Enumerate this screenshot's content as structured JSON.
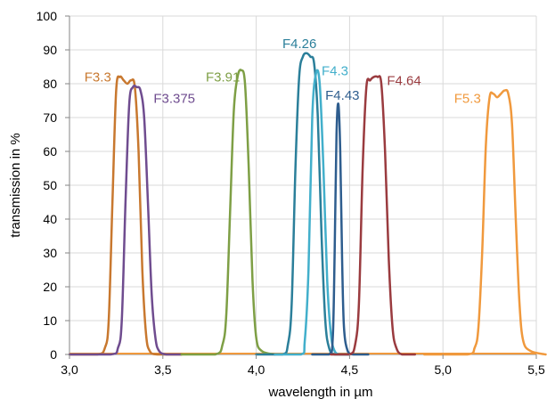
{
  "chart_data": {
    "type": "line",
    "title": "",
    "xlabel": "wavelength in µm",
    "ylabel": "transmission in %",
    "xlim": [
      3.0,
      5.5
    ],
    "ylim": [
      0,
      100
    ],
    "xticks": [
      3.0,
      3.5,
      4.0,
      4.5,
      5.0,
      5.5
    ],
    "xtick_labels": [
      "3,0",
      "3,5",
      "4,0",
      "4,5",
      "5,0",
      "5,5"
    ],
    "yticks": [
      0,
      10,
      20,
      30,
      40,
      50,
      60,
      70,
      80,
      90,
      100
    ],
    "ytick_labels": [
      "0",
      "10",
      "20",
      "30",
      "40",
      "50",
      "60",
      "70",
      "80",
      "90",
      "100"
    ],
    "grid": true,
    "legend": "none",
    "series": [
      {
        "name": "F3.3",
        "color": "#C8782F",
        "x": [
          3.0,
          3.15,
          3.19,
          3.21,
          3.23,
          3.25,
          3.27,
          3.29,
          3.31,
          3.33,
          3.35,
          3.37,
          3.39,
          3.41,
          3.43,
          3.47,
          3.6
        ],
        "y": [
          0,
          0,
          2,
          10,
          45,
          78,
          82,
          81,
          80,
          81,
          79,
          60,
          25,
          6,
          1,
          0,
          0
        ]
      },
      {
        "name": "F3.375",
        "color": "#6F4C8F",
        "x": [
          3.0,
          3.22,
          3.26,
          3.28,
          3.3,
          3.32,
          3.34,
          3.36,
          3.38,
          3.4,
          3.42,
          3.44,
          3.46,
          3.48,
          3.52,
          3.6
        ],
        "y": [
          0,
          0,
          2,
          10,
          45,
          74,
          79,
          79,
          78,
          70,
          45,
          18,
          5,
          1,
          0,
          0
        ]
      },
      {
        "name": "F3.91",
        "color": "#7E9F45",
        "x": [
          3.6,
          3.78,
          3.82,
          3.84,
          3.86,
          3.88,
          3.9,
          3.92,
          3.94,
          3.96,
          3.98,
          4.0,
          4.03,
          4.1
        ],
        "y": [
          0,
          0,
          3,
          12,
          42,
          72,
          82,
          84,
          80,
          55,
          22,
          5,
          1,
          0
        ]
      },
      {
        "name": "F4.26",
        "color": "#2B7F9A",
        "x": [
          4.0,
          4.14,
          4.17,
          4.19,
          4.21,
          4.23,
          4.25,
          4.27,
          4.29,
          4.31,
          4.33,
          4.35,
          4.37,
          4.39,
          4.42,
          4.5
        ],
        "y": [
          0,
          0,
          3,
          15,
          55,
          82,
          88,
          89,
          88,
          86,
          70,
          35,
          10,
          2,
          0,
          0
        ]
      },
      {
        "name": "F4.3",
        "color": "#42AFCB",
        "x": [
          4.1,
          4.24,
          4.26,
          4.28,
          4.3,
          4.32,
          4.34,
          4.36,
          4.38,
          4.4,
          4.42,
          4.45,
          4.5
        ],
        "y": [
          0,
          0,
          4,
          25,
          70,
          83,
          80,
          55,
          22,
          6,
          1,
          0,
          0
        ]
      },
      {
        "name": "F4.43",
        "color": "#2E5D8E",
        "x": [
          4.3,
          4.39,
          4.41,
          4.42,
          4.43,
          4.44,
          4.45,
          4.46,
          4.47,
          4.49,
          4.52,
          4.6
        ],
        "y": [
          0,
          0,
          5,
          30,
          65,
          74,
          60,
          28,
          8,
          1,
          0,
          0
        ]
      },
      {
        "name": "F4.64",
        "color": "#9A3B3F",
        "x": [
          4.4,
          4.5,
          4.53,
          4.55,
          4.57,
          4.59,
          4.61,
          4.63,
          4.65,
          4.67,
          4.69,
          4.71,
          4.73,
          4.75,
          4.78,
          4.85
        ],
        "y": [
          0,
          0,
          3,
          15,
          55,
          79,
          81,
          82,
          82,
          80,
          60,
          28,
          8,
          2,
          0,
          0
        ]
      },
      {
        "name": "F5.3",
        "color": "#F0993D",
        "x": [
          4.9,
          5.13,
          5.17,
          5.19,
          5.21,
          5.23,
          5.25,
          5.27,
          5.29,
          5.31,
          5.33,
          5.35,
          5.37,
          5.39,
          5.41,
          5.43,
          5.47,
          5.55
        ],
        "y": [
          0,
          0,
          2,
          8,
          30,
          62,
          76,
          77,
          76,
          77,
          78,
          77,
          68,
          40,
          15,
          4,
          1,
          0
        ]
      }
    ]
  },
  "labels": [
    {
      "text": "F3.3",
      "series": "F3.3",
      "x": 3.08,
      "y": 80.7
    },
    {
      "text": "F3.375",
      "series": "F3.375",
      "x": 3.45,
      "y": 74.3
    },
    {
      "text": "F3.91",
      "series": "F3.91",
      "x": 3.73,
      "y": 80.7
    },
    {
      "text": "F4.26",
      "series": "F4.26",
      "x": 4.14,
      "y": 90.5
    },
    {
      "text": "F4.3",
      "series": "F4.3",
      "x": 4.35,
      "y": 82.5
    },
    {
      "text": "F4.43",
      "series": "F4.43",
      "x": 4.37,
      "y": 75.3
    },
    {
      "text": "F4.64",
      "series": "F4.64",
      "x": 4.7,
      "y": 79.6
    },
    {
      "text": "F5.3",
      "series": "F5.3",
      "x": 5.06,
      "y": 74.3
    }
  ]
}
